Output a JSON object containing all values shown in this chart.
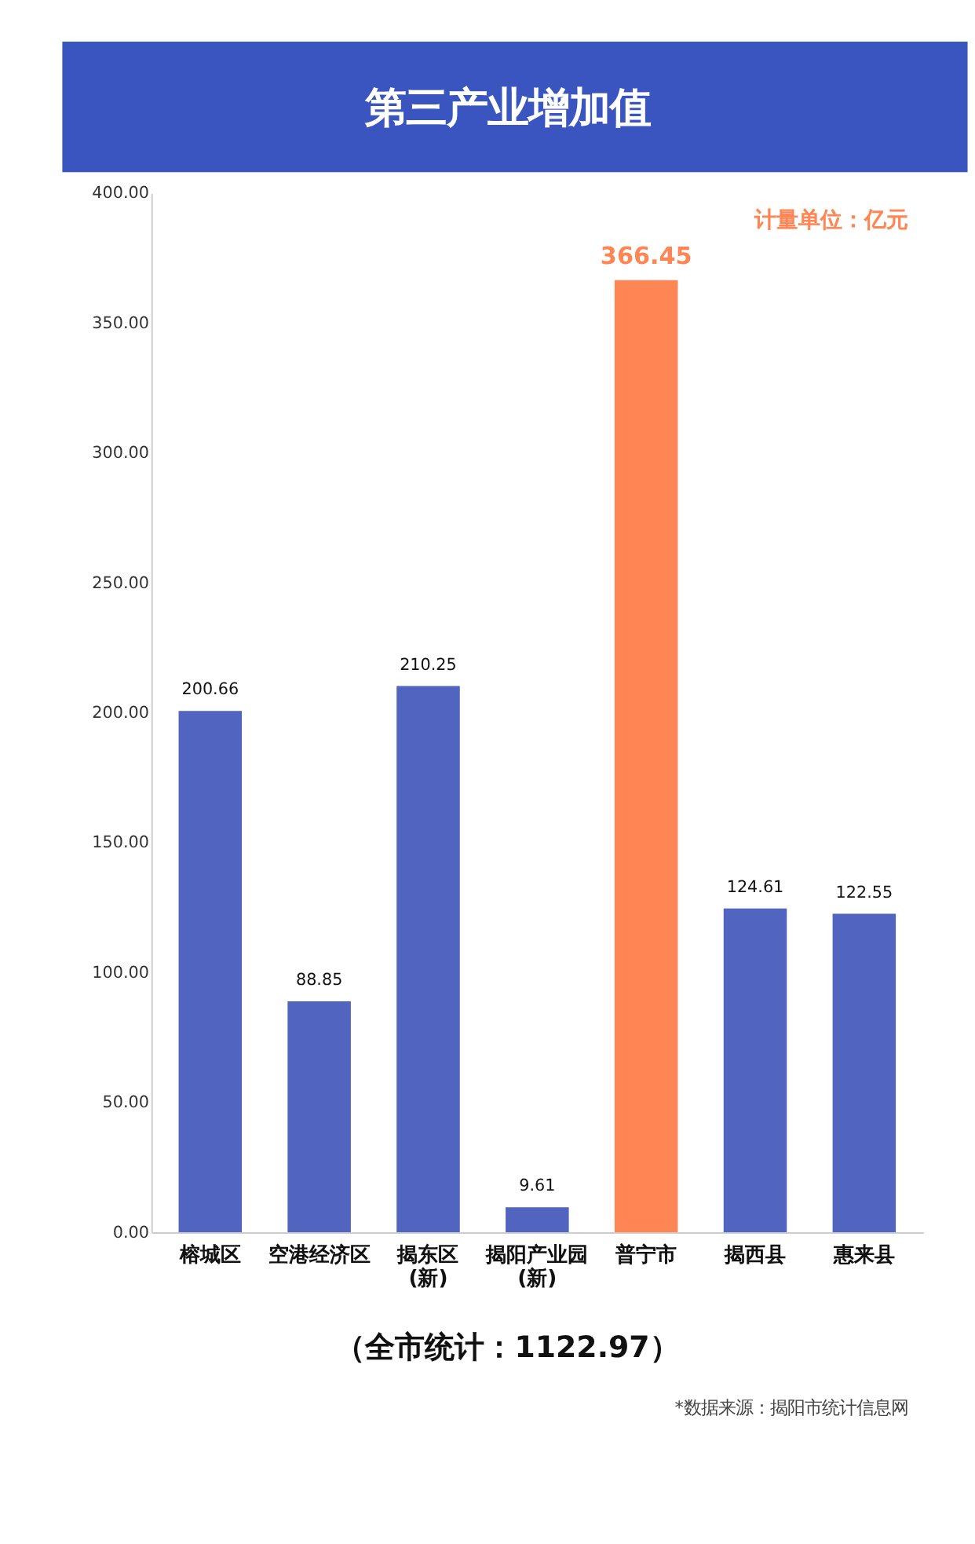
{
  "chart_data": {
    "type": "bar",
    "title": "第三产业增加值",
    "categories": [
      "榕城区",
      "空港经济区",
      "揭东区\n(新)",
      "揭阳产业园\n(新)",
      "普宁市",
      "揭西县",
      "惠来县"
    ],
    "values": [
      200.66,
      88.85,
      210.25,
      9.61,
      366.45,
      124.61,
      122.55
    ],
    "colors": [
      "#5064c0",
      "#5064c0",
      "#5064c0",
      "#5064c0",
      "#ff8555",
      "#5064c0",
      "#5064c0"
    ],
    "ylim": [
      0,
      400
    ],
    "yticks": [
      {
        "value": 0,
        "label": "0.00"
      },
      {
        "value": 50,
        "label": "50.00"
      },
      {
        "value": 100,
        "label": "100.00"
      },
      {
        "value": 150,
        "label": "150.00"
      },
      {
        "value": 200,
        "label": "200.00"
      },
      {
        "value": 250,
        "label": "250.00"
      },
      {
        "value": 300,
        "label": "300.00"
      },
      {
        "value": 350,
        "label": "350.00"
      },
      {
        "value": 400,
        "label": "400.00"
      }
    ],
    "grid": false,
    "data_labels": true,
    "annotations": [
      "计量单位：亿元",
      "（全市统计：1122.97）",
      "*数据来源：揭阳市统计信息网"
    ]
  }
}
